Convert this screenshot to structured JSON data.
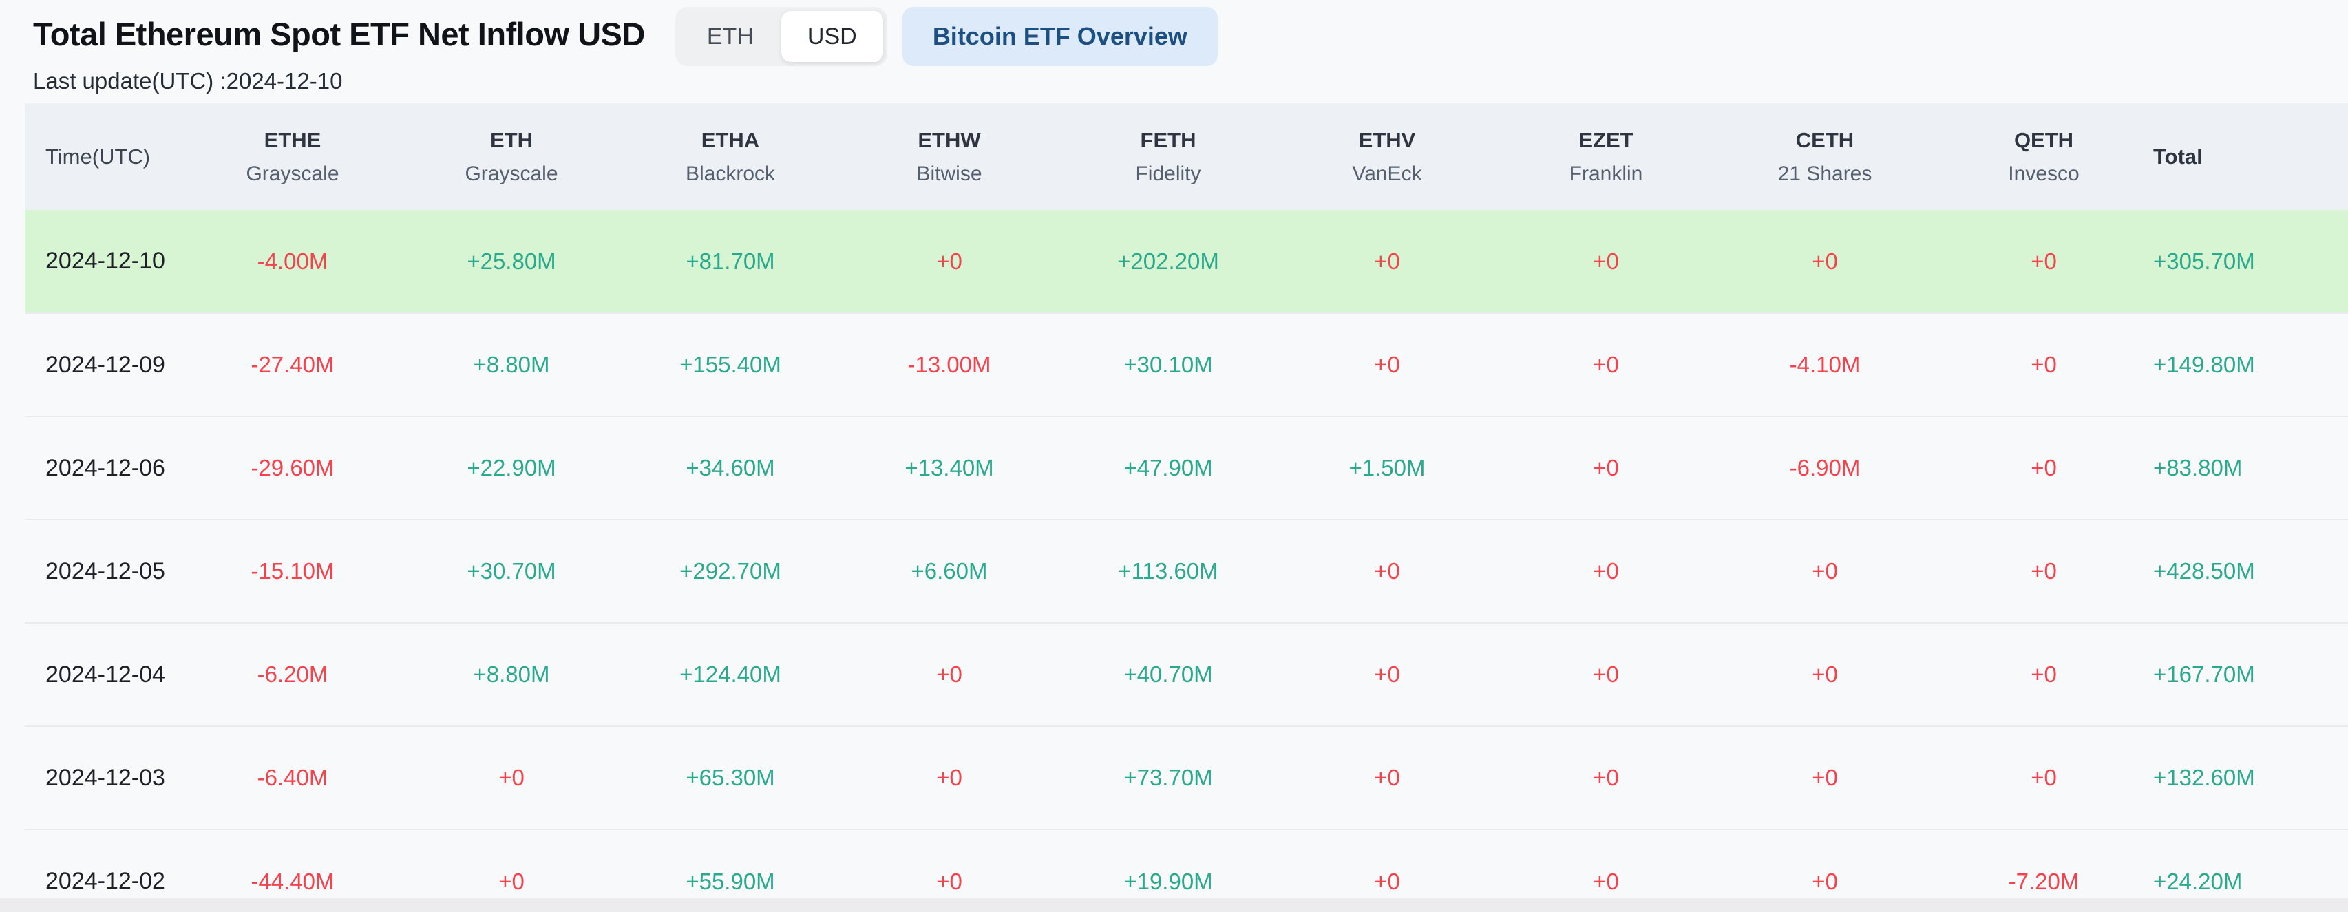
{
  "header": {
    "title": "Total Ethereum Spot ETF Net Inflow USD",
    "last_update": "Last update(UTC) :2024-12-10",
    "toggle": {
      "options": [
        "ETH",
        "USD"
      ],
      "selected": "USD"
    },
    "overview_button": "Bitcoin ETF Overview"
  },
  "table": {
    "time_header": "Time(UTC)",
    "total_header": "Total",
    "columns": [
      {
        "ticker": "ETHE",
        "issuer": "Grayscale"
      },
      {
        "ticker": "ETH",
        "issuer": "Grayscale"
      },
      {
        "ticker": "ETHA",
        "issuer": "Blackrock"
      },
      {
        "ticker": "ETHW",
        "issuer": "Bitwise"
      },
      {
        "ticker": "FETH",
        "issuer": "Fidelity"
      },
      {
        "ticker": "ETHV",
        "issuer": "VanEck"
      },
      {
        "ticker": "EZET",
        "issuer": "Franklin"
      },
      {
        "ticker": "CETH",
        "issuer": "21 Shares"
      },
      {
        "ticker": "QETH",
        "issuer": "Invesco"
      }
    ],
    "rows": [
      {
        "date": "2024-12-10",
        "highlight": true,
        "values": [
          "-4.00M",
          "+25.80M",
          "+81.70M",
          "+0",
          "+202.20M",
          "+0",
          "+0",
          "+0",
          "+0"
        ],
        "total": "+305.70M"
      },
      {
        "date": "2024-12-09",
        "highlight": false,
        "values": [
          "-27.40M",
          "+8.80M",
          "+155.40M",
          "-13.00M",
          "+30.10M",
          "+0",
          "+0",
          "-4.10M",
          "+0"
        ],
        "total": "+149.80M"
      },
      {
        "date": "2024-12-06",
        "highlight": false,
        "values": [
          "-29.60M",
          "+22.90M",
          "+34.60M",
          "+13.40M",
          "+47.90M",
          "+1.50M",
          "+0",
          "-6.90M",
          "+0"
        ],
        "total": "+83.80M"
      },
      {
        "date": "2024-12-05",
        "highlight": false,
        "values": [
          "-15.10M",
          "+30.70M",
          "+292.70M",
          "+6.60M",
          "+113.60M",
          "+0",
          "+0",
          "+0",
          "+0"
        ],
        "total": "+428.50M"
      },
      {
        "date": "2024-12-04",
        "highlight": false,
        "values": [
          "-6.20M",
          "+8.80M",
          "+124.40M",
          "+0",
          "+40.70M",
          "+0",
          "+0",
          "+0",
          "+0"
        ],
        "total": "+167.70M"
      },
      {
        "date": "2024-12-03",
        "highlight": false,
        "values": [
          "-6.40M",
          "+0",
          "+65.30M",
          "+0",
          "+73.70M",
          "+0",
          "+0",
          "+0",
          "+0"
        ],
        "total": "+132.60M"
      },
      {
        "date": "2024-12-02",
        "highlight": false,
        "values": [
          "-44.40M",
          "+0",
          "+55.90M",
          "+0",
          "+19.90M",
          "+0",
          "+0",
          "+0",
          "-7.20M"
        ],
        "total": "+24.20M"
      }
    ]
  },
  "colors": {
    "positive": "#2aa98c",
    "negative": "#f5424d",
    "highlight_row": "#d7f5d3",
    "header_bg": "#edf1f5",
    "overview_button_bg": "#ddeafa",
    "overview_button_text": "#1d5080"
  }
}
